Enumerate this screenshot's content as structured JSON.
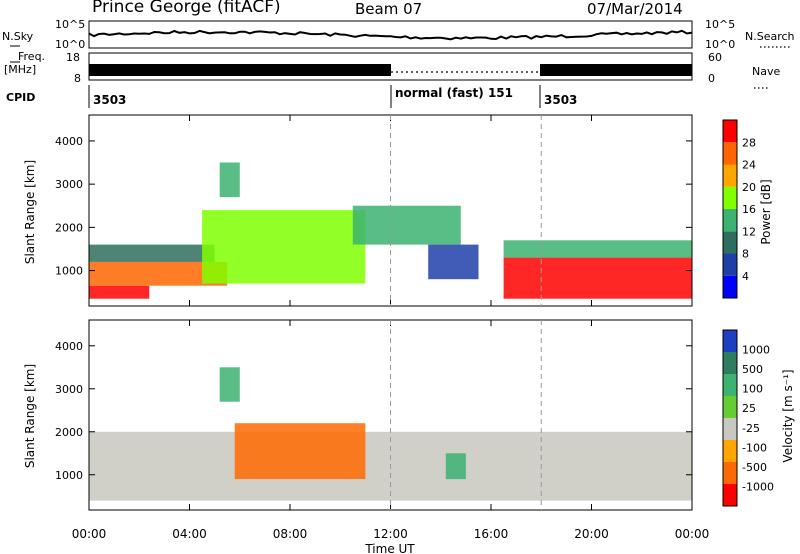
{
  "header": {
    "site": "Prince George (fitACF)",
    "beam": "Beam 07",
    "date": "07/Mar/2014"
  },
  "noise_panel": {
    "left_label": "N.Sky",
    "right_label": "N.Search",
    "left_ticks": [
      "10^5",
      "10^0"
    ],
    "right_ticks": [
      "10^5",
      "10^0"
    ]
  },
  "freq_panel": {
    "left_label_top": "Freq.",
    "left_label_bottom": "[MHz]",
    "left_ticks": [
      "18",
      "8"
    ],
    "right_label": "Nave",
    "right_ticks": [
      "60",
      "0"
    ]
  },
  "cpid_panel": {
    "label": "CPID",
    "segments": [
      {
        "start_h": 0,
        "text": "3503"
      },
      {
        "start_h": 12,
        "text": "normal (fast) 151"
      },
      {
        "start_h": 18,
        "text": "3503"
      }
    ]
  },
  "x_axis": {
    "ticks": [
      "00:00",
      "04:00",
      "08:00",
      "12:00",
      "16:00",
      "20:00",
      "00:00"
    ],
    "label": "Time UT"
  },
  "power_panel": {
    "ylabel": "Slant Range [km]",
    "yticks": [
      "4000",
      "3000",
      "2000",
      "1000"
    ],
    "colorbar_label": "Power [dB]",
    "colorbar_ticks": [
      "28",
      "24",
      "20",
      "16",
      "12",
      "8",
      "4"
    ],
    "colors": [
      "#0000ff",
      "#1f3fa8",
      "#2e6e5e",
      "#3cb371",
      "#7fff00",
      "#ffa500",
      "#ff6600",
      "#ff0000"
    ]
  },
  "velocity_panel": {
    "ylabel": "Slant Range [km]",
    "yticks": [
      "4000",
      "3000",
      "2000",
      "1000"
    ],
    "colorbar_label": "Velocity [m s⁻¹]",
    "colorbar_ticks": [
      "1000",
      "500",
      "100",
      "25",
      "-25",
      "-100",
      "-500",
      "-1000"
    ],
    "colors": [
      "#1e3fbf",
      "#2e7d5e",
      "#3cb371",
      "#66cc33",
      "#c8c8c0",
      "#ffa500",
      "#ff6a00",
      "#ff0000"
    ]
  },
  "chart_data": {
    "type": "heatmap",
    "title": "Prince George (fitACF) Beam 07 07/Mar/2014",
    "xlabel": "Time UT",
    "ylabel": "Slant Range [km]",
    "xlim_hours": [
      0,
      24
    ],
    "ylim_km": [
      180,
      4600
    ],
    "dashed_lines_hours": [
      12,
      18
    ],
    "regions": [
      {
        "panel": "power",
        "t": [
          0.0,
          2.4
        ],
        "range_km": [
          350,
          650
        ],
        "value_dB": 28
      },
      {
        "panel": "power",
        "t": [
          0.0,
          5.5
        ],
        "range_km": [
          650,
          1200
        ],
        "value_dB": 26
      },
      {
        "panel": "power",
        "t": [
          0.0,
          5.0
        ],
        "range_km": [
          1200,
          1600
        ],
        "value_dB": 10
      },
      {
        "panel": "power",
        "t": [
          4.5,
          11.0
        ],
        "range_km": [
          700,
          2400
        ],
        "value_dB": 16
      },
      {
        "panel": "power",
        "t": [
          5.2,
          6.0
        ],
        "range_km": [
          2700,
          3500
        ],
        "value_dB": 14
      },
      {
        "panel": "power",
        "t": [
          10.5,
          14.8
        ],
        "range_km": [
          1600,
          2500
        ],
        "value_dB": 14
      },
      {
        "panel": "power",
        "t": [
          13.5,
          15.5
        ],
        "range_km": [
          800,
          1600
        ],
        "value_dB": 6
      },
      {
        "panel": "power",
        "t": [
          16.5,
          24.0
        ],
        "range_km": [
          350,
          1300
        ],
        "value_dB": 28
      },
      {
        "panel": "power",
        "t": [
          16.5,
          24.0
        ],
        "range_km": [
          1300,
          1700
        ],
        "value_dB": 12
      },
      {
        "panel": "velocity",
        "t": [
          0.0,
          24.0
        ],
        "range_km": [
          400,
          2000
        ],
        "value_ms": 0
      },
      {
        "panel": "velocity",
        "t": [
          5.8,
          11.0
        ],
        "range_km": [
          900,
          2200
        ],
        "value_ms": -500
      },
      {
        "panel": "velocity",
        "t": [
          5.2,
          6.0
        ],
        "range_km": [
          2700,
          3500
        ],
        "value_ms": 100
      },
      {
        "panel": "velocity",
        "t": [
          14.2,
          15.0
        ],
        "range_km": [
          900,
          1500
        ],
        "value_ms": 100
      }
    ]
  }
}
